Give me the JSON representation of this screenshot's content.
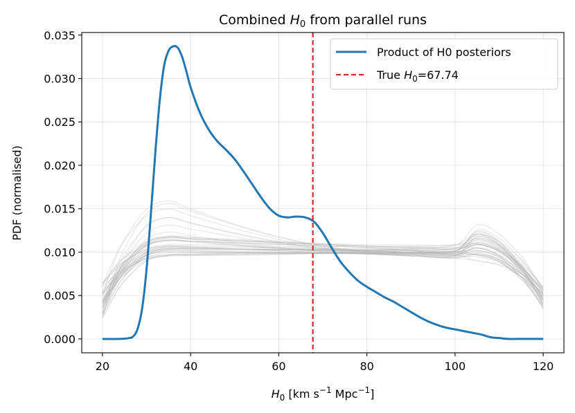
{
  "chart_data": {
    "type": "line",
    "title_prefix": "Combined ",
    "title_var": "H",
    "title_sub": "0",
    "title_suffix": " from parallel runs",
    "xlabel_var": "H",
    "xlabel_sub": "0",
    "xlabel_units_a": " [km s",
    "xlabel_exp1": "−1",
    "xlabel_units_b": " Mpc",
    "xlabel_exp2": "−1",
    "xlabel_units_c": "]",
    "ylabel": "PDF (normalised)",
    "xlim": [
      15.3,
      124.7
    ],
    "ylim": [
      -0.0016,
      0.0353
    ],
    "xticks": [
      20,
      40,
      60,
      80,
      100,
      120
    ],
    "xtick_labels": [
      "20",
      "40",
      "60",
      "80",
      "100",
      "120"
    ],
    "yticks": [
      0.0,
      0.005,
      0.01,
      0.015,
      0.02,
      0.025,
      0.03,
      0.035
    ],
    "ytick_labels": [
      "0.000",
      "0.005",
      "0.010",
      "0.015",
      "0.020",
      "0.025",
      "0.030",
      "0.035"
    ],
    "grid": true,
    "legend_position": "top-right",
    "series": [
      {
        "name": "Product of H0 posteriors",
        "color": "#1f77b4",
        "x": [
          20,
          24,
          26,
          27,
          28,
          29,
          30,
          31,
          32,
          33,
          34,
          35,
          36,
          37,
          38,
          39,
          40,
          42,
          44,
          46,
          48,
          50,
          52,
          54,
          56,
          58,
          60,
          62,
          64,
          66,
          68,
          70,
          72,
          74,
          76,
          78,
          80,
          82,
          84,
          86,
          88,
          90,
          92,
          94,
          96,
          98,
          100,
          102,
          104,
          106,
          108,
          110,
          112,
          114,
          116,
          120
        ],
        "y": [
          0.0,
          0.0,
          0.0001,
          0.0003,
          0.0012,
          0.0035,
          0.008,
          0.0145,
          0.0215,
          0.0275,
          0.0315,
          0.0332,
          0.0337,
          0.0336,
          0.0326,
          0.0309,
          0.029,
          0.0262,
          0.0242,
          0.0228,
          0.0218,
          0.0207,
          0.0193,
          0.0178,
          0.0163,
          0.015,
          0.0142,
          0.014,
          0.0141,
          0.014,
          0.0135,
          0.0122,
          0.0105,
          0.0089,
          0.0077,
          0.0067,
          0.006,
          0.0054,
          0.0048,
          0.0043,
          0.0037,
          0.0031,
          0.0025,
          0.002,
          0.0016,
          0.0013,
          0.0011,
          0.0009,
          0.0007,
          0.0005,
          0.0002,
          0.0001,
          0.0,
          0.0,
          0.0,
          0.0
        ]
      },
      {
        "name": "True H0=67.74",
        "legend_prefix": "True ",
        "legend_var": "H",
        "legend_sub": "0",
        "legend_suffix": "=67.74",
        "color": "#d62728",
        "x_value": 67.74,
        "style": "dashed"
      }
    ],
    "background_runs": {
      "description": "individual run posteriors",
      "color": "#b0b0b0",
      "count": 40,
      "x": [
        20,
        22.5,
        25,
        30,
        35,
        40,
        50,
        60,
        70,
        80,
        90,
        100,
        105,
        110,
        115,
        117.5,
        120
      ]
    }
  }
}
